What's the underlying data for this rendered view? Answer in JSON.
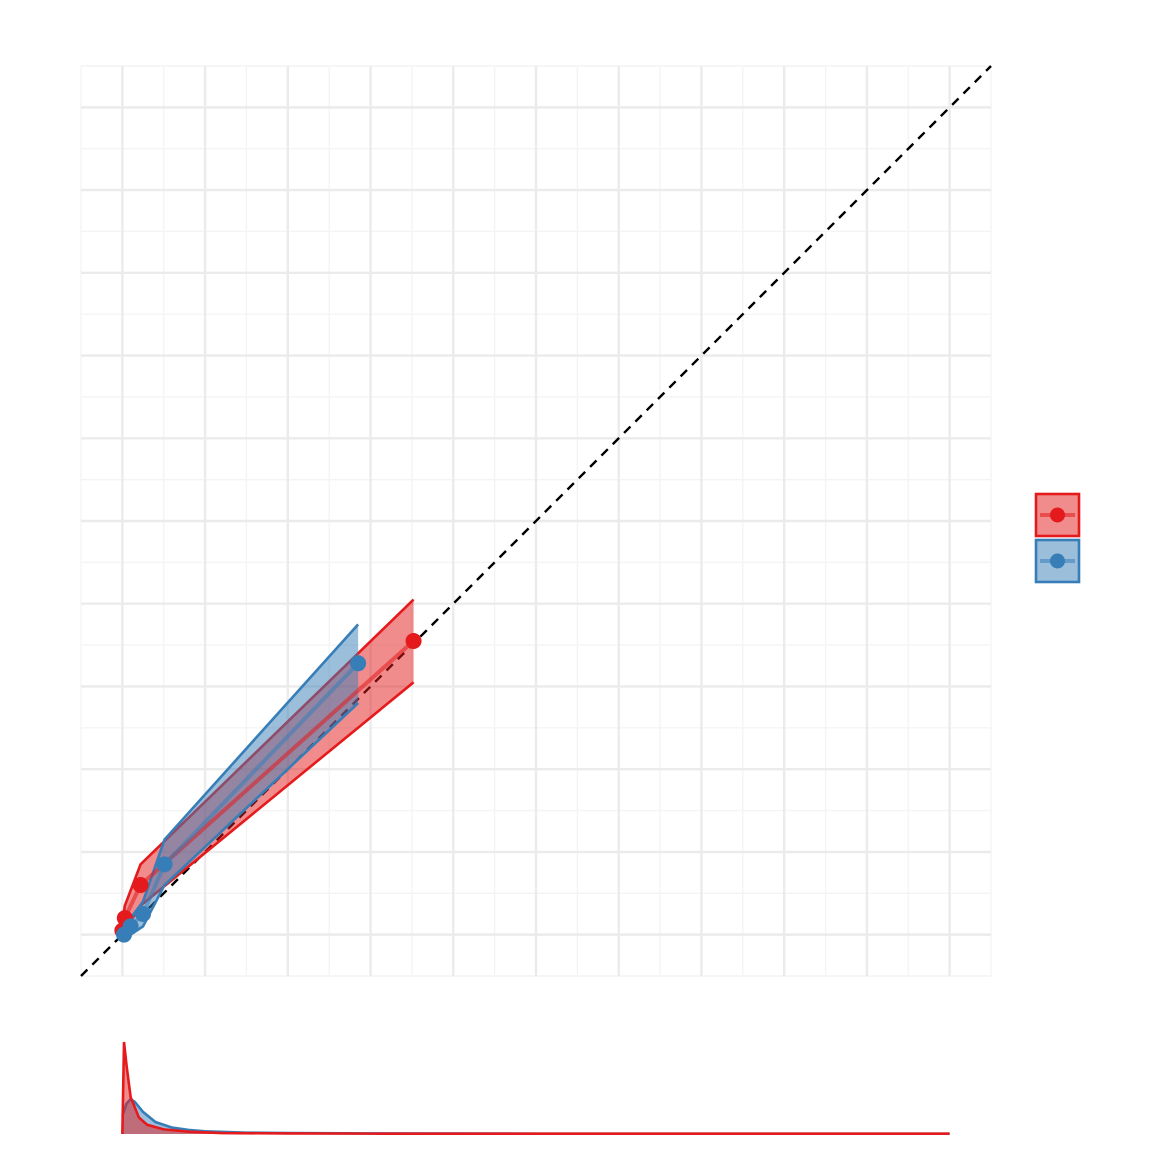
{
  "colors": {
    "red": "#E41A1C",
    "blue": "#377EB8",
    "grid_major": "#EBEBEB",
    "grid_minor": "#F4F4F4",
    "reference_line": "#000000"
  },
  "chart_data": [
    {
      "type": "line",
      "subtype": "calibration-curve-with-confidence-band",
      "title": "",
      "xlabel": "",
      "ylabel": "",
      "xlim": [
        -0.05,
        1.05
      ],
      "ylim": [
        -0.05,
        1.05
      ],
      "major_ticks": [
        0,
        0.1,
        0.2,
        0.3,
        0.4,
        0.5,
        0.6,
        0.7,
        0.8,
        0.9,
        1.0
      ],
      "grid": true,
      "reference_line": "y = x (dashed)",
      "legend": {
        "position": "right",
        "show_labels": false
      },
      "series": [
        {
          "color": "red",
          "x": [
            0.0,
            0.003,
            0.022,
            0.352
          ],
          "y": [
            0.005,
            0.02,
            0.06,
            0.355
          ],
          "lower": [
            -0.005,
            0.005,
            0.035,
            0.305
          ],
          "upper": [
            0.015,
            0.035,
            0.085,
            0.405
          ]
        },
        {
          "color": "blue",
          "x": [
            0.002,
            0.01,
            0.025,
            0.051,
            0.285
          ],
          "y": [
            0.0,
            0.01,
            0.025,
            0.085,
            0.328
          ],
          "lower": [
            -0.005,
            0.0,
            0.01,
            0.06,
            0.28
          ],
          "upper": [
            0.008,
            0.02,
            0.04,
            0.115,
            0.375
          ]
        }
      ]
    },
    {
      "type": "area",
      "subtype": "density-of-predictions",
      "xlim": [
        -0.05,
        1.05
      ],
      "grid": false,
      "series": [
        {
          "color": "red",
          "x": [
            0.0,
            0.002,
            0.005,
            0.01,
            0.02,
            0.03,
            0.05,
            0.08,
            0.12,
            0.2,
            0.3,
            0.5,
            0.7,
            1.0
          ],
          "density": [
            0.0,
            1.0,
            0.75,
            0.4,
            0.18,
            0.1,
            0.05,
            0.025,
            0.01,
            0.006,
            0.004,
            0.003,
            0.003,
            0.003
          ]
        },
        {
          "color": "blue",
          "x": [
            0.0,
            0.005,
            0.01,
            0.015,
            0.025,
            0.04,
            0.06,
            0.08,
            0.1,
            0.15,
            0.2,
            0.3,
            0.5,
            0.7,
            1.0
          ],
          "density": [
            0.2,
            0.33,
            0.38,
            0.35,
            0.24,
            0.13,
            0.07,
            0.045,
            0.03,
            0.015,
            0.01,
            0.006,
            0.004,
            0.003,
            0.003
          ]
        }
      ]
    }
  ]
}
